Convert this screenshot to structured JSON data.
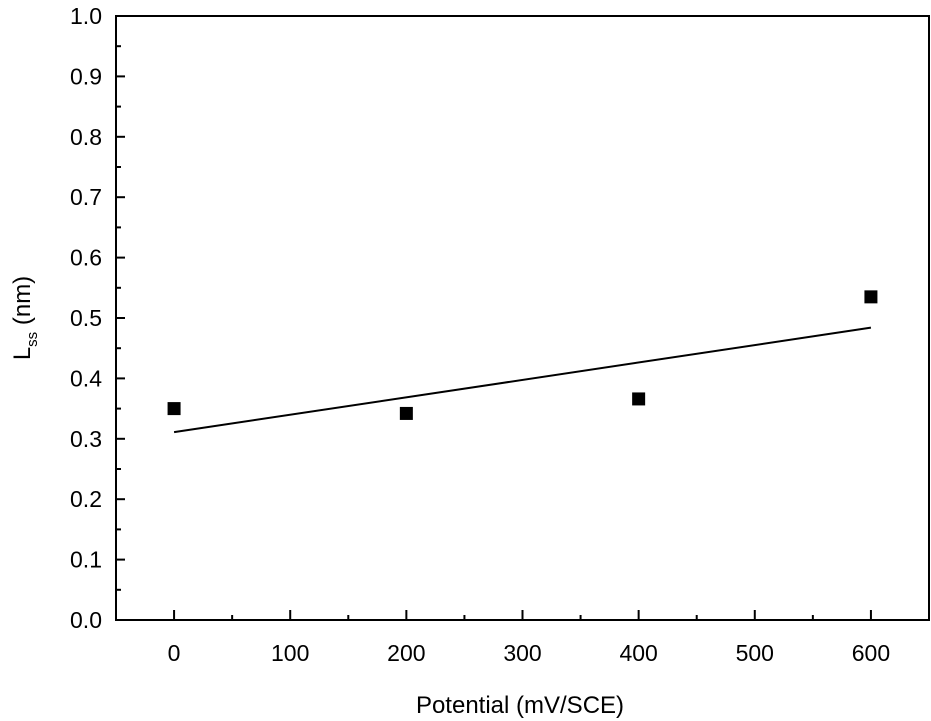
{
  "chart_data": {
    "type": "scatter",
    "xlabel": "Potential (mV/SCE)",
    "ylabel": {
      "main": "L",
      "subscript": "ss",
      "unit": " (nm)"
    },
    "xlim": [
      -50,
      650
    ],
    "ylim": [
      0.0,
      1.0
    ],
    "x_ticks": [
      0,
      100,
      200,
      300,
      400,
      500,
      600
    ],
    "x_tick_labels": [
      "0",
      "100",
      "200",
      "300",
      "400",
      "500",
      "600"
    ],
    "y_ticks": [
      0.0,
      0.1,
      0.2,
      0.3,
      0.4,
      0.5,
      0.6,
      0.7,
      0.8,
      0.9,
      1.0
    ],
    "y_tick_labels": [
      "0.0",
      "0.1",
      "0.2",
      "0.3",
      "0.4",
      "0.5",
      "0.6",
      "0.7",
      "0.8",
      "0.9",
      "1.0"
    ],
    "grid": false,
    "series": [
      {
        "marker": "square",
        "color": "#000000",
        "points": [
          {
            "x": 0,
            "y": 0.35
          },
          {
            "x": 200,
            "y": 0.342
          },
          {
            "x": 400,
            "y": 0.366
          },
          {
            "x": 600,
            "y": 0.535
          }
        ]
      }
    ],
    "fit_line": {
      "x": [
        0,
        600
      ],
      "y": [
        0.311,
        0.484
      ],
      "color": "#000000"
    }
  }
}
